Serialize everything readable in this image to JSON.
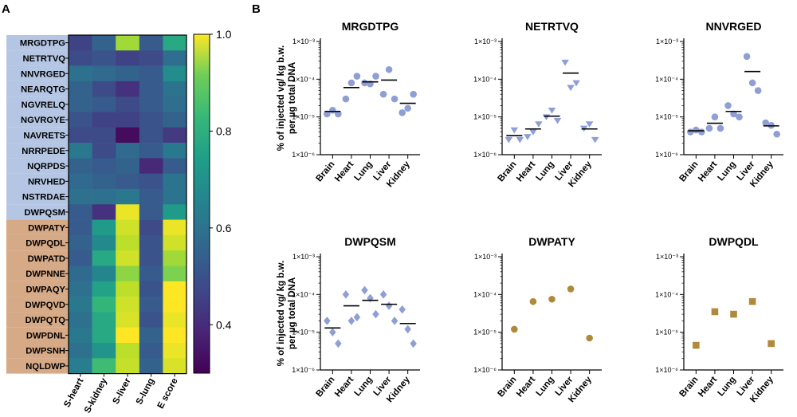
{
  "panel_labels": {
    "a": "A",
    "b": "B"
  },
  "chart_data": [
    {
      "type": "heatmap",
      "panel": "A",
      "rows": [
        "MRGDTPG",
        "NETRTVQ",
        "NNVRGED",
        "NEARQTG",
        "NGVRELQ",
        "NGVRGYE",
        "NAVRETS",
        "NRRPEDE",
        "NQRPDS",
        "NRVHED",
        "NSTRDAE",
        "DWPQSM",
        "DWPATY",
        "DWPQDL",
        "DWPATD",
        "DWPNNE",
        "DWPAQY",
        "DWPQVD",
        "DWPQTQ",
        "DWPDNL",
        "DWPSNH",
        "NQLDWP"
      ],
      "row_groups": [
        "blue",
        "blue",
        "blue",
        "blue",
        "blue",
        "blue",
        "blue",
        "blue",
        "blue",
        "blue",
        "blue",
        "blue",
        "tan",
        "tan",
        "tan",
        "tan",
        "tan",
        "tan",
        "tan",
        "tan",
        "tan",
        "tan"
      ],
      "group_colors": {
        "blue": "#b4c6e3",
        "tan": "#d6a987"
      },
      "columns": [
        "S-heart",
        "S-kidney",
        "S-liver",
        "S-lung",
        "E score"
      ],
      "values": [
        [
          0.44,
          0.52,
          0.9,
          0.5,
          0.72
        ],
        [
          0.46,
          0.48,
          0.44,
          0.46,
          0.55
        ],
        [
          0.56,
          0.54,
          0.52,
          0.5,
          0.64
        ],
        [
          0.52,
          0.46,
          0.4,
          0.5,
          0.57
        ],
        [
          0.52,
          0.5,
          0.46,
          0.5,
          0.55
        ],
        [
          0.48,
          0.44,
          0.44,
          0.48,
          0.52
        ],
        [
          0.46,
          0.46,
          0.32,
          0.48,
          0.42
        ],
        [
          0.58,
          0.46,
          0.54,
          0.5,
          0.58
        ],
        [
          0.52,
          0.5,
          0.52,
          0.38,
          0.5
        ],
        [
          0.54,
          0.52,
          0.5,
          0.48,
          0.57
        ],
        [
          0.56,
          0.56,
          0.58,
          0.5,
          0.57
        ],
        [
          0.5,
          0.4,
          0.98,
          0.5,
          0.68
        ],
        [
          0.5,
          0.68,
          0.95,
          0.46,
          0.98
        ],
        [
          0.52,
          0.63,
          0.93,
          0.48,
          0.95
        ],
        [
          0.5,
          0.72,
          0.95,
          0.48,
          0.9
        ],
        [
          0.54,
          0.62,
          0.88,
          0.5,
          0.86
        ],
        [
          0.56,
          0.7,
          0.93,
          0.48,
          1.0
        ],
        [
          0.58,
          0.76,
          0.95,
          0.5,
          1.0
        ],
        [
          0.56,
          0.72,
          0.96,
          0.48,
          0.98
        ],
        [
          0.58,
          0.72,
          1.0,
          0.52,
          1.0
        ],
        [
          0.56,
          0.66,
          0.93,
          0.5,
          0.98
        ],
        [
          0.6,
          0.78,
          0.94,
          0.52,
          0.96
        ]
      ],
      "colorbar": {
        "min": 0.3,
        "max": 1.0,
        "ticks": [
          "1.0",
          "0.8",
          "0.6",
          "0.4"
        ],
        "tick_values": [
          1.0,
          0.8,
          0.6,
          0.4
        ]
      }
    },
    {
      "type": "scatter",
      "panel": "B",
      "title": "MRGDTPG",
      "marker": "circle",
      "color": "#8f9fd4",
      "ylabel": "% of injected vg/ kg b.w.\nper µg total DNA",
      "yscale": "log",
      "ylim": [
        1e-06,
        0.001
      ],
      "yticks": [
        "1×10⁻³",
        "1×10⁻⁴",
        "1×10⁻⁵",
        "1×10⁻⁶"
      ],
      "categories": [
        "Brain",
        "Heart",
        "Lung",
        "Liver",
        "Kidney"
      ],
      "points": [
        [
          1.2e-05,
          1.5e-05,
          1.2e-05
        ],
        [
          3e-05,
          8e-05,
          0.00012
        ],
        [
          8e-05,
          7.5e-05,
          0.00012
        ],
        [
          4e-05,
          0.00018,
          3e-05
        ],
        [
          1.3e-05,
          1.7e-05,
          4e-05
        ]
      ],
      "means": [
        1.4e-05,
        6e-05,
        8.5e-05,
        9.5e-05,
        2.3e-05
      ]
    },
    {
      "type": "scatter",
      "panel": "B",
      "title": "NETRTVQ",
      "marker": "triangle-down",
      "color": "#8f9fd4",
      "yscale": "log",
      "ylim": [
        1e-06,
        0.001
      ],
      "yticks": [
        "1×10⁻³",
        "1×10⁻⁴",
        "1×10⁻⁵",
        "1×10⁻⁶"
      ],
      "categories": [
        "Brain",
        "Heart",
        "Lung",
        "Liver",
        "Kidney"
      ],
      "points": [
        [
          2.5e-06,
          4.5e-06,
          2.5e-06
        ],
        [
          3e-06,
          4e-06,
          6.5e-06
        ],
        [
          1e-05,
          1.5e-05,
          8e-06
        ],
        [
          0.00028,
          6e-05,
          8e-05
        ],
        [
          5e-06,
          6.5e-06,
          2.5e-06
        ]
      ],
      "means": [
        3.2e-06,
        4.8e-06,
        1.05e-05,
        0.000145,
        4.8e-06
      ]
    },
    {
      "type": "scatter",
      "panel": "B",
      "title": "NNVRGED",
      "marker": "circle",
      "color": "#8f9fd4",
      "yscale": "log",
      "ylim": [
        1e-06,
        0.001
      ],
      "yticks": [
        "1×10⁻³",
        "1×10⁻⁴",
        "1×10⁻⁵",
        "1×10⁻⁶"
      ],
      "categories": [
        "Brain",
        "Heart",
        "Lung",
        "Liver",
        "Kidney"
      ],
      "points": [
        [
          4e-06,
          4.5e-06,
          4e-06
        ],
        [
          5e-06,
          1e-05,
          5e-06
        ],
        [
          2e-05,
          1.2e-05,
          1e-05
        ],
        [
          0.0004,
          8e-05,
          5e-05
        ],
        [
          7e-06,
          6e-06,
          3.5e-06
        ]
      ],
      "means": [
        4.3e-06,
        6.8e-06,
        1.4e-05,
        0.00016,
        5.8e-06
      ]
    },
    {
      "type": "scatter",
      "panel": "B",
      "title": "DWPQSM",
      "marker": "diamond",
      "color": "#8f9fd4",
      "ylabel": "% of injected vg/ kg b.w.\nper µg total DNA",
      "yscale": "log",
      "ylim": [
        1e-06,
        0.001
      ],
      "yticks": [
        "1×10⁻³",
        "1×10⁻⁴",
        "1×10⁻⁵",
        "1×10⁻⁶"
      ],
      "categories": [
        "Brain",
        "Heart",
        "Lung",
        "Liver",
        "Kidney"
      ],
      "points": [
        [
          2e-05,
          1e-05,
          5e-06
        ],
        [
          0.0001,
          2e-05,
          2.5e-05
        ],
        [
          0.00013,
          8e-05,
          3e-05
        ],
        [
          0.0001,
          5e-05,
          2e-05
        ],
        [
          4e-05,
          1.2e-05,
          5e-06
        ]
      ],
      "means": [
        1.3e-05,
        5e-05,
        7e-05,
        5.5e-05,
        1.7e-05
      ]
    },
    {
      "type": "scatter",
      "panel": "B",
      "title": "DWPATY",
      "marker": "circle",
      "color": "#b08a3c",
      "yscale": "log",
      "ylim": [
        1e-06,
        0.001
      ],
      "yticks": [
        "1×10⁻³",
        "1×10⁻⁴",
        "1×10⁻⁵",
        "1×10⁻⁶"
      ],
      "categories": [
        "Brain",
        "Heart",
        "Lung",
        "Liver",
        "Kidney"
      ],
      "points": [
        [
          1.2e-05
        ],
        [
          6.5e-05
        ],
        [
          7.5e-05
        ],
        [
          0.00014
        ],
        [
          7e-06
        ]
      ],
      "means": []
    },
    {
      "type": "scatter",
      "panel": "B",
      "title": "DWPQDL",
      "marker": "square",
      "color": "#b08a3c",
      "yscale": "log",
      "ylim": [
        1e-06,
        0.001
      ],
      "yticks": [
        "1×10⁻³",
        "1×10⁻⁴",
        "1×10⁻⁵",
        "1×10⁻⁶"
      ],
      "categories": [
        "Brain",
        "Heart",
        "Lung",
        "Liver",
        "Kidney"
      ],
      "points": [
        [
          4.5e-06
        ],
        [
          3.5e-05
        ],
        [
          3e-05
        ],
        [
          6.5e-05
        ],
        [
          5e-06
        ]
      ],
      "means": []
    }
  ]
}
